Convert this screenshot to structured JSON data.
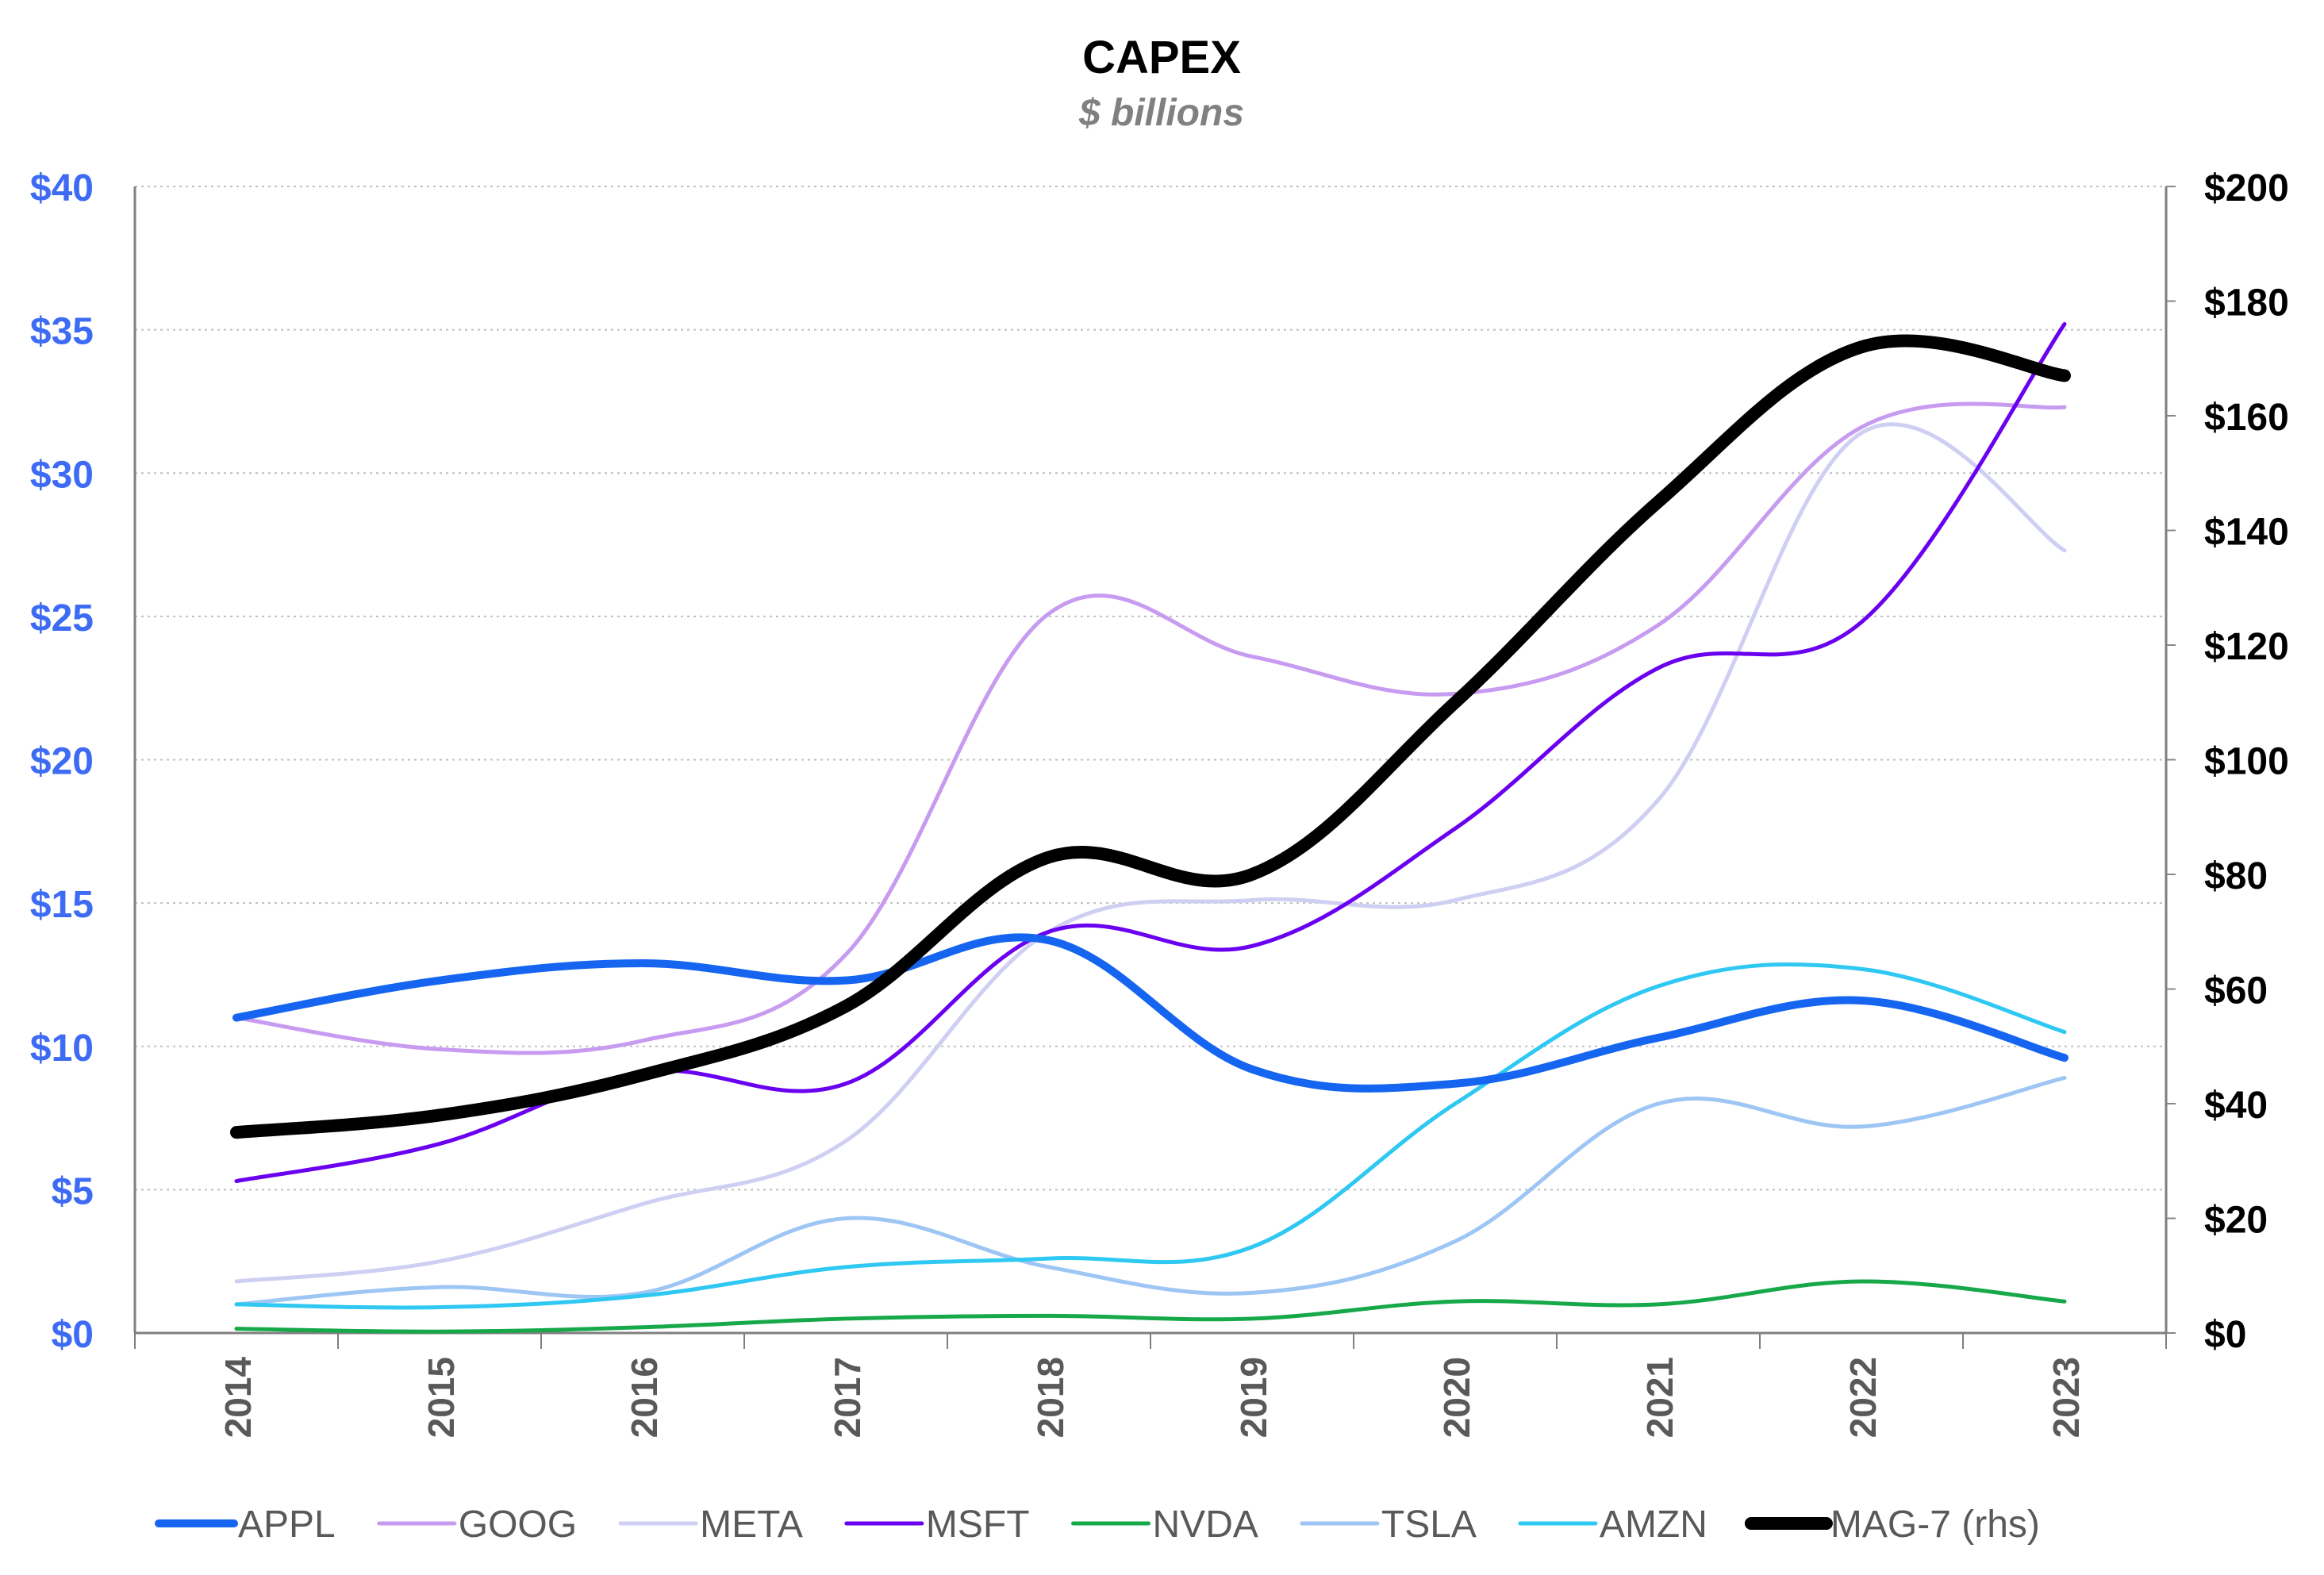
{
  "chart_data": {
    "type": "line",
    "title": "CAPEX",
    "subtitle": "$ billions",
    "categories": [
      "2014",
      "2015",
      "2016",
      "2017",
      "2018",
      "2019",
      "2020",
      "2021",
      "2022",
      "2023"
    ],
    "y_left": {
      "min": 0,
      "max": 40,
      "step": 5,
      "tick_labels": [
        "$0",
        "$5",
        "$10",
        "$15",
        "$20",
        "$25",
        "$30",
        "$35",
        "$40"
      ],
      "color": "#3d6bf4"
    },
    "y_right": {
      "min": 0,
      "max": 200,
      "step": 20,
      "tick_labels": [
        "$0",
        "$20",
        "$40",
        "$60",
        "$80",
        "$100",
        "$120",
        "$140",
        "$160",
        "$180",
        "$200"
      ],
      "color": "#000000"
    },
    "grid": "horizontal dotted",
    "legend_position": "bottom",
    "series": [
      {
        "name": "APPL",
        "axis": "left",
        "color": "#1565f0",
        "width": 10,
        "values": [
          11.0,
          12.3,
          12.9,
          12.3,
          13.7,
          9.2,
          8.7,
          10.3,
          11.6,
          9.6
        ]
      },
      {
        "name": "GOOG",
        "axis": "left",
        "color": "#c79bf0",
        "width": 5,
        "values": [
          11.0,
          9.9,
          10.2,
          13.2,
          25.1,
          23.6,
          22.3,
          24.7,
          31.6,
          32.3
        ]
      },
      {
        "name": "META",
        "axis": "left",
        "color": "#cfcff3",
        "width": 5,
        "values": [
          1.8,
          2.5,
          4.5,
          6.7,
          14.0,
          15.1,
          15.1,
          18.6,
          31.4,
          27.3
        ]
      },
      {
        "name": "MSFT",
        "axis": "left",
        "color": "#6a00f0",
        "width": 5,
        "values": [
          5.3,
          6.6,
          9.1,
          8.7,
          14.0,
          13.5,
          17.6,
          23.2,
          24.8,
          35.2
        ]
      },
      {
        "name": "NVDA",
        "axis": "left",
        "color": "#17a84a",
        "width": 5,
        "values": [
          0.15,
          0.05,
          0.2,
          0.5,
          0.6,
          0.5,
          1.1,
          1.0,
          1.8,
          1.1
        ]
      },
      {
        "name": "TSLA",
        "axis": "left",
        "color": "#9ec6f5",
        "width": 5,
        "values": [
          1.0,
          1.6,
          1.4,
          4.0,
          2.3,
          1.4,
          3.2,
          8.0,
          7.2,
          8.9
        ]
      },
      {
        "name": "AMZN",
        "axis": "left",
        "color": "#2ec8f2",
        "width": 5,
        "values": [
          1.0,
          0.9,
          1.3,
          2.3,
          2.6,
          3.0,
          8.0,
          12.1,
          12.7,
          10.5
        ]
      },
      {
        "name": "MAG-7 (rhs)",
        "axis": "right",
        "color": "#000000",
        "width": 16,
        "values": [
          35,
          38,
          45,
          57,
          83,
          80,
          110,
          145,
          172,
          167
        ]
      }
    ]
  }
}
